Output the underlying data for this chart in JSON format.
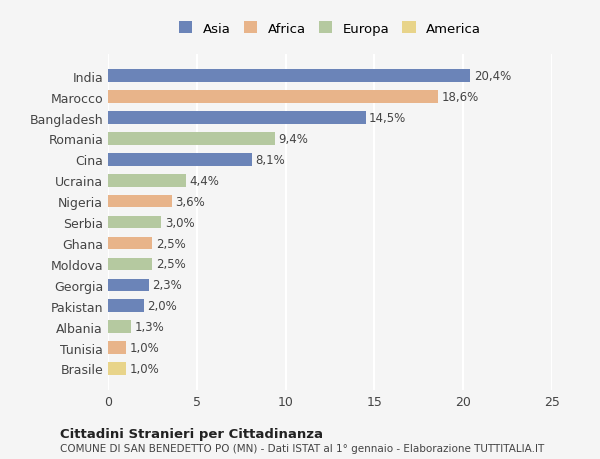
{
  "countries": [
    "India",
    "Marocco",
    "Bangladesh",
    "Romania",
    "Cina",
    "Ucraina",
    "Nigeria",
    "Serbia",
    "Ghana",
    "Moldova",
    "Georgia",
    "Pakistan",
    "Albania",
    "Tunisia",
    "Brasile"
  ],
  "values": [
    20.4,
    18.6,
    14.5,
    9.4,
    8.1,
    4.4,
    3.6,
    3.0,
    2.5,
    2.5,
    2.3,
    2.0,
    1.3,
    1.0,
    1.0
  ],
  "labels": [
    "20,4%",
    "18,6%",
    "14,5%",
    "9,4%",
    "8,1%",
    "4,4%",
    "3,6%",
    "3,0%",
    "2,5%",
    "2,5%",
    "2,3%",
    "2,0%",
    "1,3%",
    "1,0%",
    "1,0%"
  ],
  "continents": [
    "Asia",
    "Africa",
    "Asia",
    "Europa",
    "Asia",
    "Europa",
    "Africa",
    "Europa",
    "Africa",
    "Europa",
    "Asia",
    "Asia",
    "Europa",
    "Africa",
    "America"
  ],
  "colors": {
    "Asia": "#6b84b8",
    "Africa": "#e8b48a",
    "Europa": "#b5c9a0",
    "America": "#e8d48a"
  },
  "legend_order": [
    "Asia",
    "Africa",
    "Europa",
    "America"
  ],
  "xlim": [
    0,
    25
  ],
  "xticks": [
    0,
    5,
    10,
    15,
    20,
    25
  ],
  "title": "Cittadini Stranieri per Cittadinanza",
  "subtitle": "COMUNE DI SAN BENEDETTO PO (MN) - Dati ISTAT al 1° gennaio - Elaborazione TUTTITALIA.IT",
  "background_color": "#f5f5f5",
  "bar_height": 0.6,
  "grid_color": "#ffffff",
  "label_fontsize": 8.5,
  "tick_fontsize": 9
}
